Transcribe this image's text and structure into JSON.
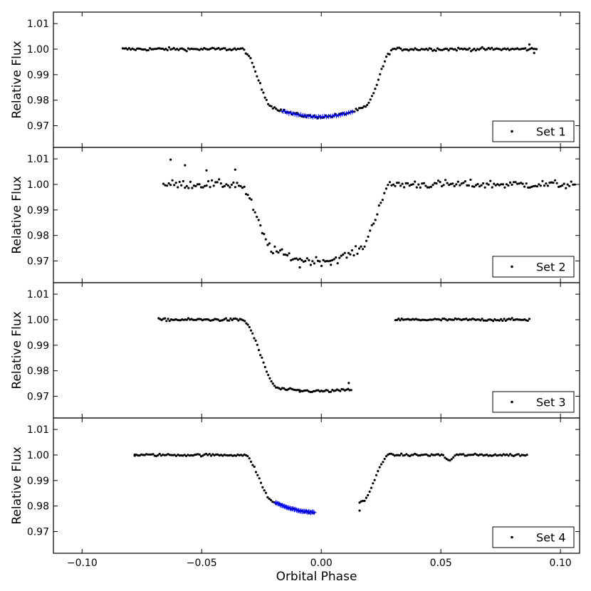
{
  "chart_data": {
    "type": "scatter",
    "xlabel": "Orbital Phase",
    "ylabel": "Relative Flux",
    "xlim": [
      -0.112,
      0.108
    ],
    "ylim": [
      0.9615,
      1.0145
    ],
    "xticks": [
      -0.1,
      -0.05,
      0.0,
      0.05,
      0.1
    ],
    "xtick_labels": [
      "−0.10",
      "−0.05",
      "0.00",
      "0.05",
      "0.10"
    ],
    "yticks": [
      0.97,
      0.98,
      0.99,
      1.0,
      1.01
    ],
    "ytick_labels": [
      "0.97",
      "0.98",
      "0.99",
      "1.00",
      "1.01"
    ],
    "legend_position": "bottom-right",
    "grid": false,
    "colors": {
      "points": "#000000",
      "model": "#0000ff"
    },
    "panels": [
      {
        "legend": "Set 1",
        "x_range": [
          -0.083,
          0.09
        ],
        "segments": [
          [
            -0.083,
            0.09
          ]
        ],
        "ingress": [
          -0.0335,
          -0.0195
        ],
        "egress": [
          0.0175,
          0.0305
        ],
        "depth": 0.0265,
        "noise": 0.0006,
        "bottom_curve": 0.0035,
        "n_points": 260,
        "model_overlay": [
          -0.016,
          0.013
        ],
        "outliers": [
          [
            0.087,
            1.0018
          ],
          [
            0.089,
            0.9985
          ]
        ]
      },
      {
        "legend": "Set 2",
        "x_range": [
          -0.066,
          0.106
        ],
        "segments": [
          [
            -0.066,
            0.106
          ]
        ],
        "ingress": [
          -0.035,
          -0.019
        ],
        "egress": [
          0.015,
          0.03
        ],
        "depth": 0.03,
        "noise": 0.0016,
        "bottom_curve": 0.004,
        "n_points": 230,
        "outliers": [
          [
            -0.063,
            1.0097
          ],
          [
            -0.057,
            1.0075
          ],
          [
            -0.048,
            1.0055
          ],
          [
            -0.036,
            1.0058
          ],
          [
            -0.009,
            0.9675
          ],
          [
            0.004,
            0.9685
          ]
        ]
      },
      {
        "legend": "Set 3",
        "x_range": [
          -0.068,
          0.087
        ],
        "segments": [
          [
            -0.068,
            0.0125
          ],
          [
            0.031,
            0.087
          ]
        ],
        "ingress": [
          -0.0335,
          -0.0175
        ],
        "egress": [
          0.016,
          0.031
        ],
        "depth": 0.028,
        "noise": 0.0005,
        "bottom_curve": 0.001,
        "n_points": 210,
        "outliers": [
          [
            0.0115,
            0.9752
          ],
          [
            -0.009,
            0.9718
          ]
        ]
      },
      {
        "legend": "Set 4",
        "x_range": [
          -0.078,
          0.086
        ],
        "segments": [
          [
            -0.078,
            -0.003
          ],
          [
            0.016,
            0.086
          ]
        ],
        "ingress": [
          -0.0325,
          -0.0195
        ],
        "egress": [
          0.0165,
          0.0285
        ],
        "depth": 0.0225,
        "noise": 0.00045,
        "bottom_curve": 0.004,
        "n_points": 210,
        "model_overlay": [
          -0.019,
          -0.003
        ],
        "outliers": [
          [
            -0.078,
            1.0001
          ],
          [
            0.016,
            0.9782
          ]
        ],
        "dips": [
          [
            0.0535,
            0.0025,
            0.002
          ]
        ]
      }
    ]
  }
}
